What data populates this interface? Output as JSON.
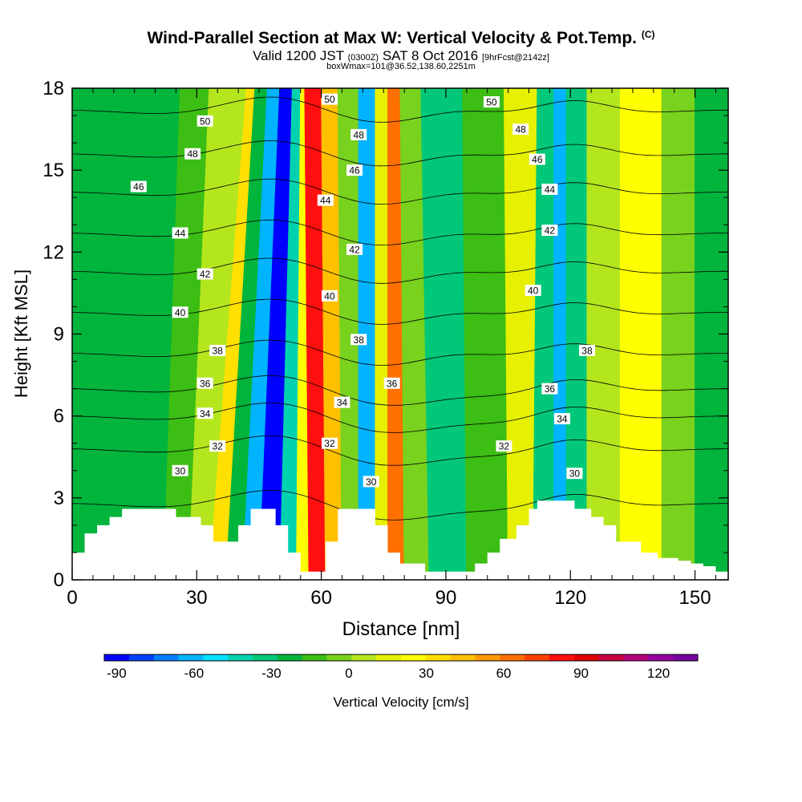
{
  "title": {
    "main": "Wind-Parallel Section at Max W: Vertical Velocity & Pot.Temp.",
    "copyright": "(C)"
  },
  "subtitle": {
    "valid_prefix": "Valid 1200 JST",
    "utc": "(0300Z)",
    "date": "SAT 8 Oct 2016",
    "forecast": "[9hrFcst@2142z]"
  },
  "subline": "boxWmax=101@36.52,138.60,2251m",
  "chart_data": {
    "type": "heatmap",
    "xlabel": "Distance [nm]",
    "ylabel": "Height [Kft MSL]",
    "xlim": [
      0,
      158
    ],
    "ylim": [
      0,
      18
    ],
    "x_ticks": [
      0,
      30,
      60,
      90,
      120,
      150
    ],
    "y_ticks": [
      0,
      3,
      6,
      9,
      12,
      15,
      18
    ],
    "colorbar": {
      "label": "Vertical Velocity [cm/s]",
      "min": -90,
      "max": 130,
      "step": 10,
      "tick_values": [
        -90,
        -60,
        -30,
        0,
        30,
        60,
        90,
        120
      ],
      "colors": [
        "#0000ff",
        "#0040ff",
        "#0080ff",
        "#00b4ff",
        "#00e0ff",
        "#00d2b0",
        "#00c878",
        "#00b43c",
        "#3cbe14",
        "#78d21e",
        "#b4e61e",
        "#e6f000",
        "#ffff00",
        "#ffe000",
        "#ffc000",
        "#ff9800",
        "#ff7000",
        "#ff4000",
        "#ff1010",
        "#e00000",
        "#c80040",
        "#b40078",
        "#9600a0",
        "#7800a0"
      ]
    },
    "vertical_velocity_bands": [
      {
        "x": 0,
        "x_top": 0,
        "w": -20
      },
      {
        "x": 8,
        "x_top": 10,
        "w": -15
      },
      {
        "x": 22,
        "x_top": 26,
        "w": -10
      },
      {
        "x": 28,
        "x_top": 33,
        "w": 10
      },
      {
        "x": 33,
        "x_top": 42,
        "w": 45
      },
      {
        "x": 37,
        "x_top": 44,
        "w": -20
      },
      {
        "x": 41,
        "x_top": 47,
        "w": -60
      },
      {
        "x": 45,
        "x_top": 50,
        "w": -90
      },
      {
        "x": 50,
        "x_top": 53,
        "w": -35
      },
      {
        "x": 54,
        "x_top": 55,
        "w": 30
      },
      {
        "x": 57,
        "x_top": 56,
        "w": 95
      },
      {
        "x": 61,
        "x_top": 60,
        "w": 55
      },
      {
        "x": 65,
        "x_top": 64,
        "w": 0
      },
      {
        "x": 69,
        "x_top": 69,
        "w": -55
      },
      {
        "x": 73,
        "x_top": 73,
        "w": 20
      },
      {
        "x": 76,
        "x_top": 76,
        "w": 70
      },
      {
        "x": 80,
        "x_top": 79,
        "w": 5
      },
      {
        "x": 86,
        "x_top": 84,
        "w": -30
      },
      {
        "x": 95,
        "x_top": 94,
        "w": -10
      },
      {
        "x": 105,
        "x_top": 104,
        "w": 25
      },
      {
        "x": 111,
        "x_top": 112,
        "w": -25
      },
      {
        "x": 116,
        "x_top": 116,
        "w": -60
      },
      {
        "x": 119,
        "x_top": 119,
        "w": -25
      },
      {
        "x": 124,
        "x_top": 124,
        "w": 10
      },
      {
        "x": 132,
        "x_top": 132,
        "w": 35
      },
      {
        "x": 142,
        "x_top": 142,
        "w": 0
      },
      {
        "x": 150,
        "x_top": 150,
        "w": -20
      },
      {
        "x": 158,
        "x_top": 158,
        "w": -5
      }
    ],
    "terrain": [
      {
        "x": 0,
        "h": 1.0
      },
      {
        "x": 3,
        "h": 1.7
      },
      {
        "x": 6,
        "h": 2.0
      },
      {
        "x": 9,
        "h": 2.3
      },
      {
        "x": 12,
        "h": 2.6
      },
      {
        "x": 25,
        "h": 2.3
      },
      {
        "x": 31,
        "h": 2.0
      },
      {
        "x": 34,
        "h": 1.4
      },
      {
        "x": 40,
        "h": 2.0
      },
      {
        "x": 43,
        "h": 2.6
      },
      {
        "x": 49,
        "h": 2.0
      },
      {
        "x": 52,
        "h": 1.0
      },
      {
        "x": 55,
        "h": 0.3
      },
      {
        "x": 61,
        "h": 1.4
      },
      {
        "x": 64,
        "h": 2.6
      },
      {
        "x": 73,
        "h": 2.0
      },
      {
        "x": 76,
        "h": 1.0
      },
      {
        "x": 79,
        "h": 0.6
      },
      {
        "x": 85,
        "h": 0.3
      },
      {
        "x": 97,
        "h": 0.6
      },
      {
        "x": 100,
        "h": 1.0
      },
      {
        "x": 103,
        "h": 1.5
      },
      {
        "x": 107,
        "h": 2.0
      },
      {
        "x": 110,
        "h": 2.6
      },
      {
        "x": 112,
        "h": 2.9
      },
      {
        "x": 118,
        "h": 2.9
      },
      {
        "x": 121,
        "h": 2.6
      },
      {
        "x": 125,
        "h": 2.3
      },
      {
        "x": 128,
        "h": 2.0
      },
      {
        "x": 131,
        "h": 1.4
      },
      {
        "x": 134,
        "h": 1.4
      },
      {
        "x": 137,
        "h": 1.0
      },
      {
        "x": 141,
        "h": 0.8
      },
      {
        "x": 146,
        "h": 0.7
      },
      {
        "x": 149,
        "h": 0.6
      },
      {
        "x": 152,
        "h": 0.5
      },
      {
        "x": 155,
        "h": 0.3
      },
      {
        "x": 158,
        "h": 0.3
      }
    ],
    "theta_contours": {
      "levels": [
        30,
        32,
        34,
        36,
        38,
        40,
        42,
        44,
        46,
        48,
        50
      ],
      "base_height": [
        2.8,
        4.8,
        6.0,
        7.0,
        8.3,
        9.8,
        11.3,
        12.7,
        14.2,
        15.6,
        17.2
      ],
      "labels": [
        {
          "level": 30,
          "x": 26,
          "y": 4.0
        },
        {
          "level": 32,
          "x": 35,
          "y": 4.9
        },
        {
          "level": 34,
          "x": 32,
          "y": 6.1
        },
        {
          "level": 36,
          "x": 32,
          "y": 7.2
        },
        {
          "level": 38,
          "x": 35,
          "y": 8.4
        },
        {
          "level": 40,
          "x": 26,
          "y": 9.8
        },
        {
          "level": 42,
          "x": 32,
          "y": 11.2
        },
        {
          "level": 44,
          "x": 26,
          "y": 12.7
        },
        {
          "level": 46,
          "x": 16,
          "y": 14.4
        },
        {
          "level": 48,
          "x": 29,
          "y": 15.6
        },
        {
          "level": 50,
          "x": 32,
          "y": 16.8
        },
        {
          "level": 50,
          "x": 62,
          "y": 17.6
        },
        {
          "level": 48,
          "x": 69,
          "y": 16.3
        },
        {
          "level": 46,
          "x": 68,
          "y": 15.0
        },
        {
          "level": 44,
          "x": 61,
          "y": 13.9
        },
        {
          "level": 42,
          "x": 68,
          "y": 12.1
        },
        {
          "level": 40,
          "x": 62,
          "y": 10.4
        },
        {
          "level": 38,
          "x": 69,
          "y": 8.8
        },
        {
          "level": 36,
          "x": 77,
          "y": 7.2
        },
        {
          "level": 34,
          "x": 65,
          "y": 6.5
        },
        {
          "level": 32,
          "x": 62,
          "y": 5.0
        },
        {
          "level": 30,
          "x": 72,
          "y": 3.6
        },
        {
          "level": 32,
          "x": 104,
          "y": 4.9
        },
        {
          "level": 30,
          "x": 121,
          "y": 3.9
        },
        {
          "level": 34,
          "x": 118,
          "y": 5.9
        },
        {
          "level": 36,
          "x": 115,
          "y": 7.0
        },
        {
          "level": 38,
          "x": 124,
          "y": 8.4
        },
        {
          "level": 40,
          "x": 111,
          "y": 10.6
        },
        {
          "level": 42,
          "x": 115,
          "y": 12.8
        },
        {
          "level": 44,
          "x": 115,
          "y": 14.3
        },
        {
          "level": 46,
          "x": 112,
          "y": 15.4
        },
        {
          "level": 48,
          "x": 108,
          "y": 16.5
        },
        {
          "level": 50,
          "x": 101,
          "y": 17.5
        }
      ]
    }
  }
}
